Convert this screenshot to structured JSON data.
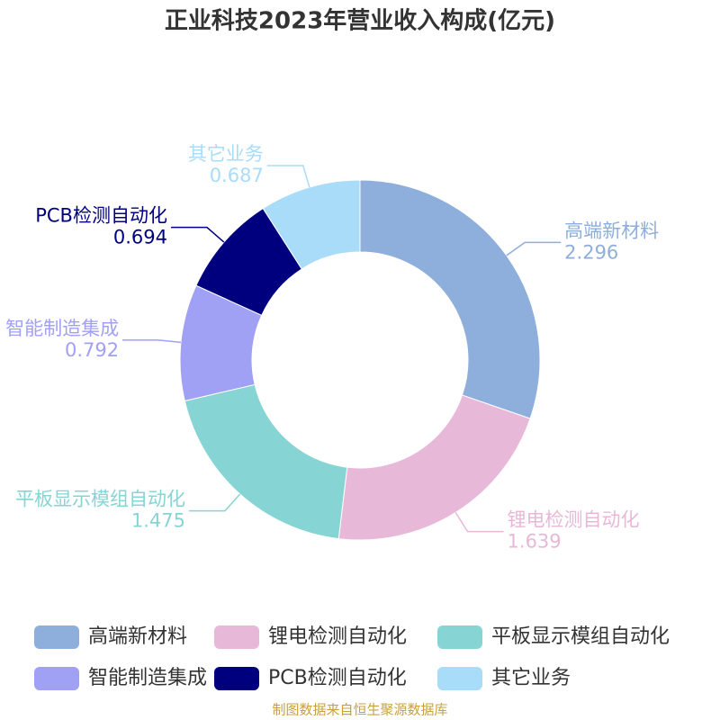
{
  "chart_data": {
    "type": "donut",
    "title": "正业科技2023年营业收入构成(亿元)",
    "categories": [
      "高端新材料",
      "锂电检测自动化",
      "平板显示模组自动化",
      "智能制造集成",
      "PCB检测自动化",
      "其它业务"
    ],
    "values": [
      2.296,
      1.639,
      1.475,
      0.792,
      0.694,
      0.687
    ],
    "colors": [
      "#8eaedb",
      "#e8b8d8",
      "#87d4d4",
      "#a0a0f5",
      "#00007f",
      "#a8dcf8"
    ],
    "source": "制图数据来自恒生聚源数据库"
  }
}
